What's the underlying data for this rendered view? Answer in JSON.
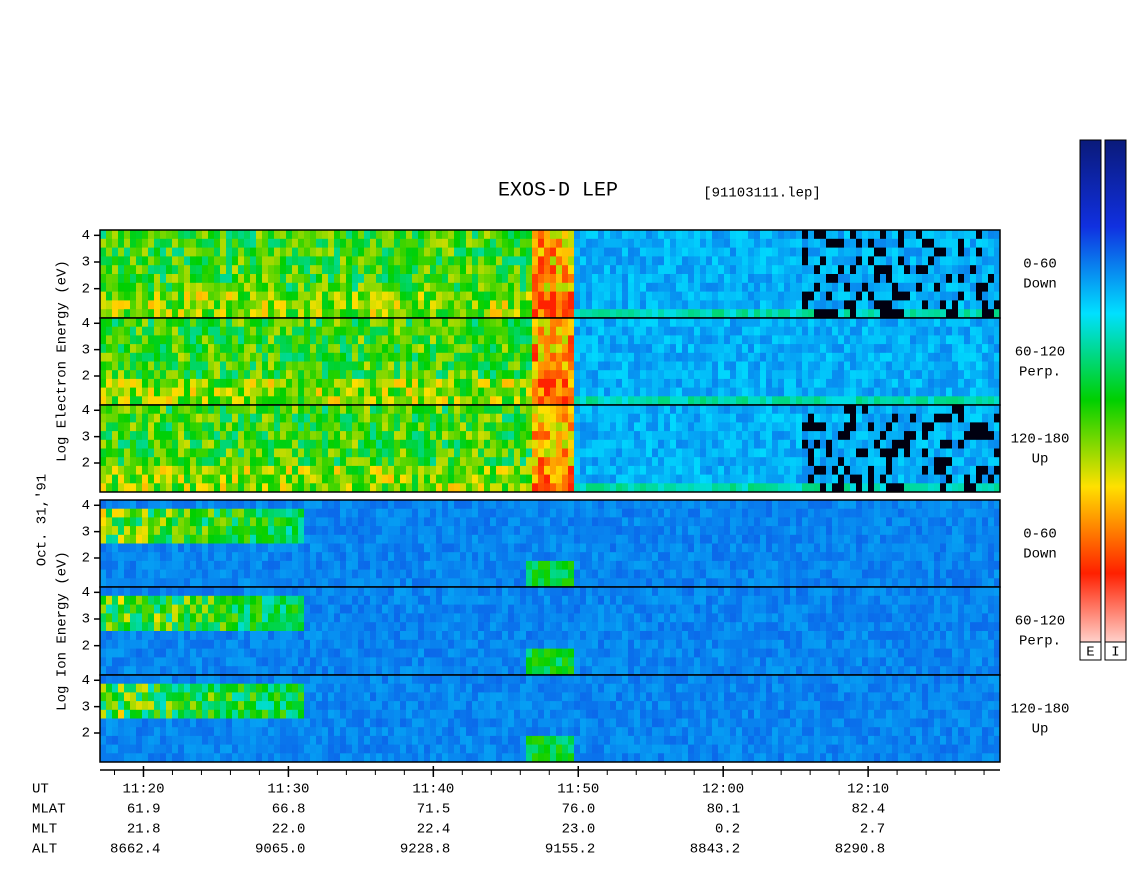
{
  "chart_data": {
    "type": "spectrogram",
    "title": "EXOS-D LEP",
    "file_label": "[91103111.lep]",
    "date_label": "Oct. 31,'91",
    "x_label": "UT",
    "xlim": [
      677,
      739.1
    ],
    "xticks": [
      {
        "value": 680,
        "label": "11:20"
      },
      {
        "value": 690,
        "label": "11:30"
      },
      {
        "value": 700,
        "label": "11:40"
      },
      {
        "value": 710,
        "label": "11:50"
      },
      {
        "value": 720,
        "label": "12:00"
      },
      {
        "value": 730,
        "label": "12:10"
      }
    ],
    "ylim": [
      0.9,
      4.2
    ],
    "yticks": [
      2,
      3,
      4
    ],
    "groups": [
      {
        "name": "Log Electron Energy (eV)",
        "panels": [
          {
            "angle": "0-60",
            "direction": "Down"
          },
          {
            "angle": "60-120",
            "direction": "Perp."
          },
          {
            "angle": "120-180",
            "direction": "Up"
          }
        ]
      },
      {
        "name": "Log Ion Energy (eV)",
        "panels": [
          {
            "angle": "0-60",
            "direction": "Down"
          },
          {
            "angle": "60-120",
            "direction": "Perp."
          },
          {
            "angle": "120-180",
            "direction": "Up"
          }
        ]
      }
    ],
    "colorbars": [
      {
        "name": "E"
      },
      {
        "name": "I"
      }
    ],
    "colorscale": [
      "#0a1a7a",
      "#1030e0",
      "#00e0ff",
      "#00d000",
      "#ffe000",
      "#ff2000",
      "#ffffff"
    ],
    "orbit": [
      {
        "name": "MLAT",
        "values": [
          "61.9",
          "66.8",
          "71.5",
          "76.0",
          "80.1",
          "82.4"
        ]
      },
      {
        "name": "MLT",
        "values": [
          "21.8",
          "22.0",
          "22.4",
          "23.0",
          "0.2",
          "2.7"
        ]
      },
      {
        "name": "ALT",
        "values": [
          "8662.4",
          "9065.0",
          "9228.8",
          "9155.2",
          "8843.2",
          "8290.8"
        ]
      }
    ]
  }
}
